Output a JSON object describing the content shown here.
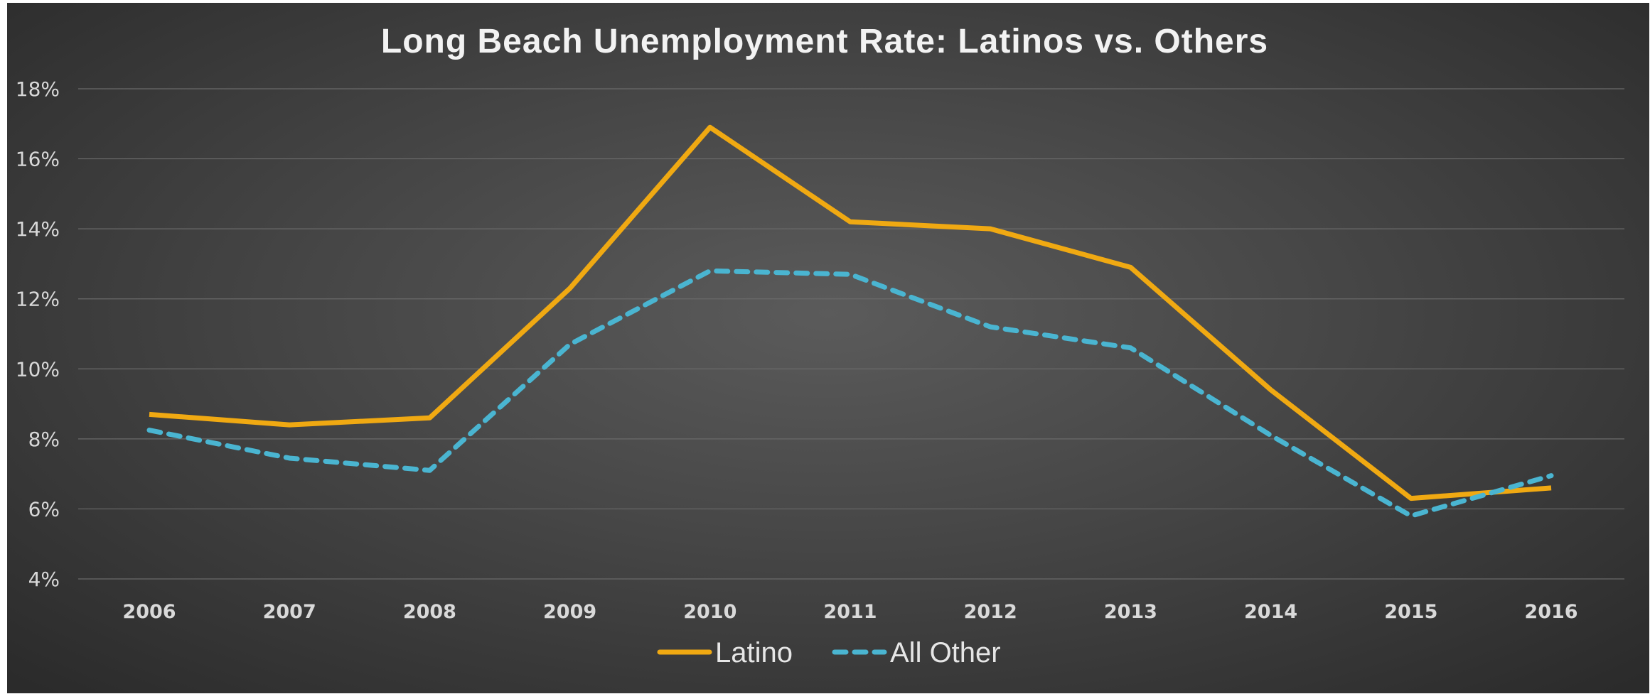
{
  "chart_data": {
    "type": "line",
    "title": "Long Beach Unemployment Rate:  Latinos vs. Others",
    "xlabel": "",
    "ylabel": "",
    "categories": [
      "2006",
      "2007",
      "2008",
      "2009",
      "2010",
      "2011",
      "2012",
      "2013",
      "2014",
      "2015",
      "2016"
    ],
    "y_ticks": [
      "4%",
      "6%",
      "8%",
      "10%",
      "12%",
      "14%",
      "16%",
      "18%"
    ],
    "ylim": [
      4,
      18
    ],
    "grid": "horizontal",
    "legend_position": "bottom",
    "series": [
      {
        "name": "Latino",
        "values": [
          8.7,
          8.4,
          8.6,
          12.3,
          16.9,
          14.2,
          14.0,
          12.9,
          9.4,
          6.3,
          6.6
        ],
        "color": "#f0a912",
        "style": "solid"
      },
      {
        "name": "All Other",
        "values": [
          8.25,
          7.45,
          7.1,
          10.7,
          12.8,
          12.7,
          11.2,
          10.6,
          8.1,
          5.8,
          6.95
        ],
        "color": "#4ab5d1",
        "style": "dashed"
      }
    ]
  }
}
